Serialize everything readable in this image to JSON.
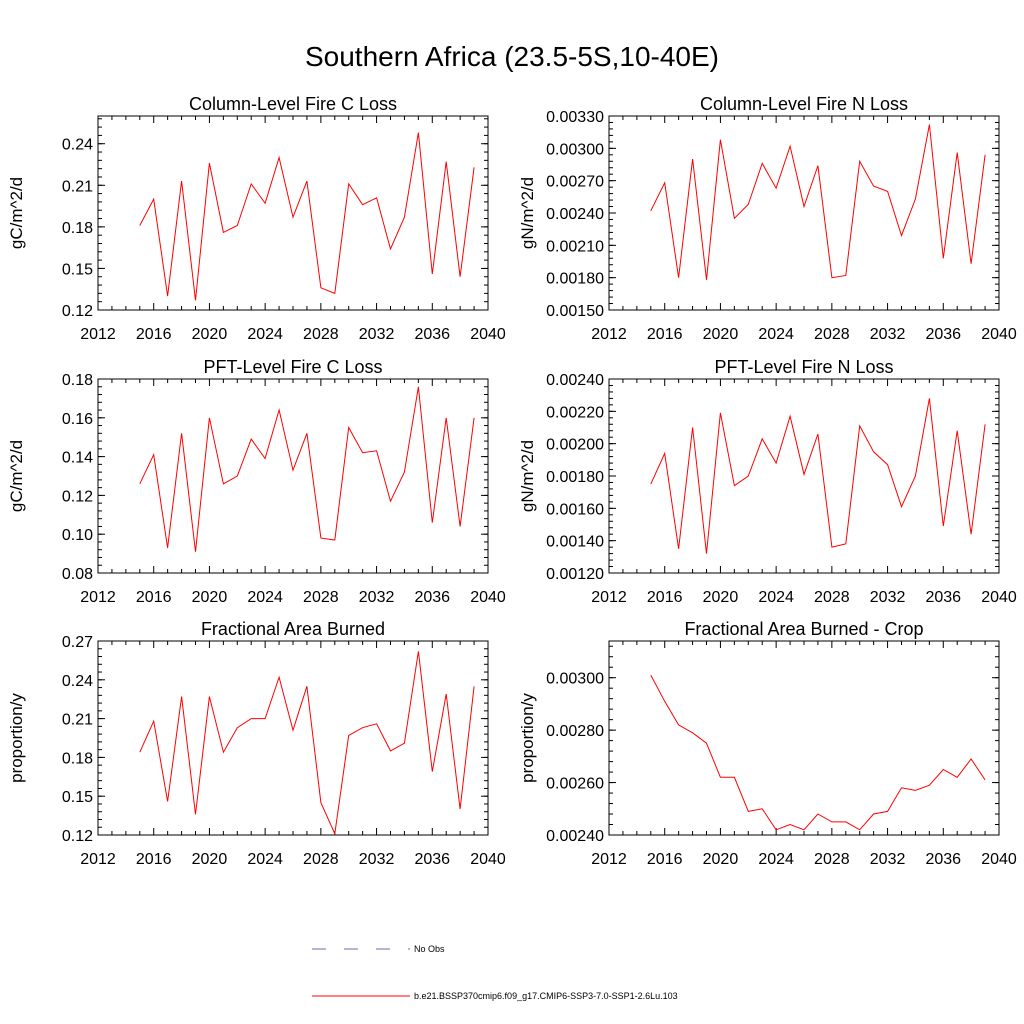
{
  "figure": {
    "title": "Southern Africa (23.5-5S,10-40E)"
  },
  "legend": [
    {
      "label": "No Obs",
      "color": "#6a6aaa",
      "style": "dashed"
    },
    {
      "label": "b.e21.BSSP370cmip6.f09_g17.CMIP6-SSP3-7.0-SSP1-2.6Lu.103",
      "color": "#ff0000",
      "style": "solid"
    }
  ],
  "chart_data": [
    {
      "type": "line",
      "title": "Column-Level Fire C Loss",
      "ylabel": "gC/m^2/d",
      "xlim": [
        2012,
        2040
      ],
      "ylim": [
        0.12,
        0.26
      ],
      "xticks": [
        "2012",
        "2016",
        "2020",
        "2024",
        "2028",
        "2032",
        "2036",
        "2040"
      ],
      "yticks": [
        "0.12",
        "0.15",
        "0.18",
        "0.21",
        "0.24"
      ],
      "x": [
        2015,
        2016,
        2017,
        2018,
        2019,
        2020,
        2021,
        2022,
        2023,
        2024,
        2025,
        2026,
        2027,
        2028,
        2029,
        2030,
        2031,
        2032,
        2033,
        2034,
        2035,
        2036,
        2037,
        2038,
        2039
      ],
      "series": [
        {
          "color": "#ff0000",
          "values": [
            0.181,
            0.2,
            0.13,
            0.213,
            0.127,
            0.226,
            0.176,
            0.181,
            0.211,
            0.197,
            0.23,
            0.187,
            0.213,
            0.136,
            0.132,
            0.211,
            0.196,
            0.201,
            0.164,
            0.187,
            0.248,
            0.146,
            0.227,
            0.144,
            0.223
          ]
        }
      ]
    },
    {
      "type": "line",
      "title": "Column-Level Fire N Loss",
      "ylabel": "gN/m^2/d",
      "xlim": [
        2012,
        2040
      ],
      "ylim": [
        0.0015,
        0.0033
      ],
      "xticks": [
        "2012",
        "2016",
        "2020",
        "2024",
        "2028",
        "2032",
        "2036",
        "2040"
      ],
      "yticks": [
        "0.00150",
        "0.00180",
        "0.00210",
        "0.00240",
        "0.00270",
        "0.00300",
        "0.00330"
      ],
      "x": [
        2015,
        2016,
        2017,
        2018,
        2019,
        2020,
        2021,
        2022,
        2023,
        2024,
        2025,
        2026,
        2027,
        2028,
        2029,
        2030,
        2031,
        2032,
        2033,
        2034,
        2035,
        2036,
        2037,
        2038,
        2039
      ],
      "series": [
        {
          "color": "#ff0000",
          "values": [
            0.00242,
            0.00268,
            0.0018,
            0.0029,
            0.00178,
            0.00308,
            0.00235,
            0.00248,
            0.00286,
            0.00263,
            0.00302,
            0.00246,
            0.00284,
            0.0018,
            0.00182,
            0.00288,
            0.00265,
            0.0026,
            0.00219,
            0.00253,
            0.00322,
            0.00198,
            0.00296,
            0.00193,
            0.00294
          ]
        }
      ]
    },
    {
      "type": "line",
      "title": "PFT-Level Fire C Loss",
      "ylabel": "gC/m^2/d",
      "xlim": [
        2012,
        2040
      ],
      "ylim": [
        0.08,
        0.18
      ],
      "xticks": [
        "2012",
        "2016",
        "2020",
        "2024",
        "2028",
        "2032",
        "2036",
        "2040"
      ],
      "yticks": [
        "0.08",
        "0.10",
        "0.12",
        "0.14",
        "0.16",
        "0.18"
      ],
      "x": [
        2015,
        2016,
        2017,
        2018,
        2019,
        2020,
        2021,
        2022,
        2023,
        2024,
        2025,
        2026,
        2027,
        2028,
        2029,
        2030,
        2031,
        2032,
        2033,
        2034,
        2035,
        2036,
        2037,
        2038,
        2039
      ],
      "series": [
        {
          "color": "#ff0000",
          "values": [
            0.126,
            0.141,
            0.093,
            0.152,
            0.091,
            0.16,
            0.126,
            0.13,
            0.149,
            0.139,
            0.164,
            0.133,
            0.152,
            0.098,
            0.097,
            0.155,
            0.142,
            0.143,
            0.117,
            0.132,
            0.176,
            0.106,
            0.16,
            0.104,
            0.16
          ]
        }
      ]
    },
    {
      "type": "line",
      "title": "PFT-Level Fire N Loss",
      "ylabel": "gN/m^2/d",
      "xlim": [
        2012,
        2040
      ],
      "ylim": [
        0.0012,
        0.0024
      ],
      "xticks": [
        "2012",
        "2016",
        "2020",
        "2024",
        "2028",
        "2032",
        "2036",
        "2040"
      ],
      "yticks": [
        "0.00120",
        "0.00140",
        "0.00160",
        "0.00180",
        "0.00200",
        "0.00220",
        "0.00240"
      ],
      "x": [
        2015,
        2016,
        2017,
        2018,
        2019,
        2020,
        2021,
        2022,
        2023,
        2024,
        2025,
        2026,
        2027,
        2028,
        2029,
        2030,
        2031,
        2032,
        2033,
        2034,
        2035,
        2036,
        2037,
        2038,
        2039
      ],
      "series": [
        {
          "color": "#ff0000",
          "values": [
            0.00175,
            0.00194,
            0.00135,
            0.0021,
            0.00132,
            0.00219,
            0.00174,
            0.0018,
            0.00203,
            0.00188,
            0.00217,
            0.00181,
            0.00206,
            0.00136,
            0.00138,
            0.00211,
            0.00195,
            0.00187,
            0.00161,
            0.0018,
            0.00228,
            0.00149,
            0.00208,
            0.00144,
            0.00212
          ]
        }
      ]
    },
    {
      "type": "line",
      "title": "Fractional Area Burned",
      "ylabel": "proportion/y",
      "xlim": [
        2012,
        2040
      ],
      "ylim": [
        0.12,
        0.27
      ],
      "xticks": [
        "2012",
        "2016",
        "2020",
        "2024",
        "2028",
        "2032",
        "2036",
        "2040"
      ],
      "yticks": [
        "0.12",
        "0.15",
        "0.18",
        "0.21",
        "0.24",
        "0.27"
      ],
      "x": [
        2015,
        2016,
        2017,
        2018,
        2019,
        2020,
        2021,
        2022,
        2023,
        2024,
        2025,
        2026,
        2027,
        2028,
        2029,
        2030,
        2031,
        2032,
        2033,
        2034,
        2035,
        2036,
        2037,
        2038,
        2039
      ],
      "series": [
        {
          "color": "#ff0000",
          "values": [
            0.184,
            0.208,
            0.146,
            0.227,
            0.136,
            0.227,
            0.184,
            0.203,
            0.21,
            0.21,
            0.242,
            0.201,
            0.235,
            0.145,
            0.121,
            0.197,
            0.203,
            0.206,
            0.185,
            0.191,
            0.262,
            0.169,
            0.229,
            0.14,
            0.235
          ]
        }
      ]
    },
    {
      "type": "line",
      "title": "Fractional Area Burned - Crop",
      "ylabel": "proportion/y",
      "xlim": [
        2012,
        2040
      ],
      "ylim": [
        0.0024,
        0.00314
      ],
      "xticks": [
        "2012",
        "2016",
        "2020",
        "2024",
        "2028",
        "2032",
        "2036",
        "2040"
      ],
      "yticks": [
        "0.00240",
        "0.00260",
        "0.00280",
        "0.00300"
      ],
      "x": [
        2015,
        2016,
        2017,
        2018,
        2019,
        2020,
        2021,
        2022,
        2023,
        2024,
        2025,
        2026,
        2027,
        2028,
        2029,
        2030,
        2031,
        2032,
        2033,
        2034,
        2035,
        2036,
        2037,
        2038,
        2039
      ],
      "series": [
        {
          "color": "#ff0000",
          "values": [
            0.00301,
            0.00291,
            0.00282,
            0.00279,
            0.00275,
            0.00262,
            0.00262,
            0.00249,
            0.0025,
            0.00242,
            0.00244,
            0.00242,
            0.00248,
            0.00245,
            0.00245,
            0.00242,
            0.00248,
            0.00249,
            0.00258,
            0.00257,
            0.00259,
            0.00265,
            0.00262,
            0.00269,
            0.00261
          ]
        }
      ]
    }
  ]
}
